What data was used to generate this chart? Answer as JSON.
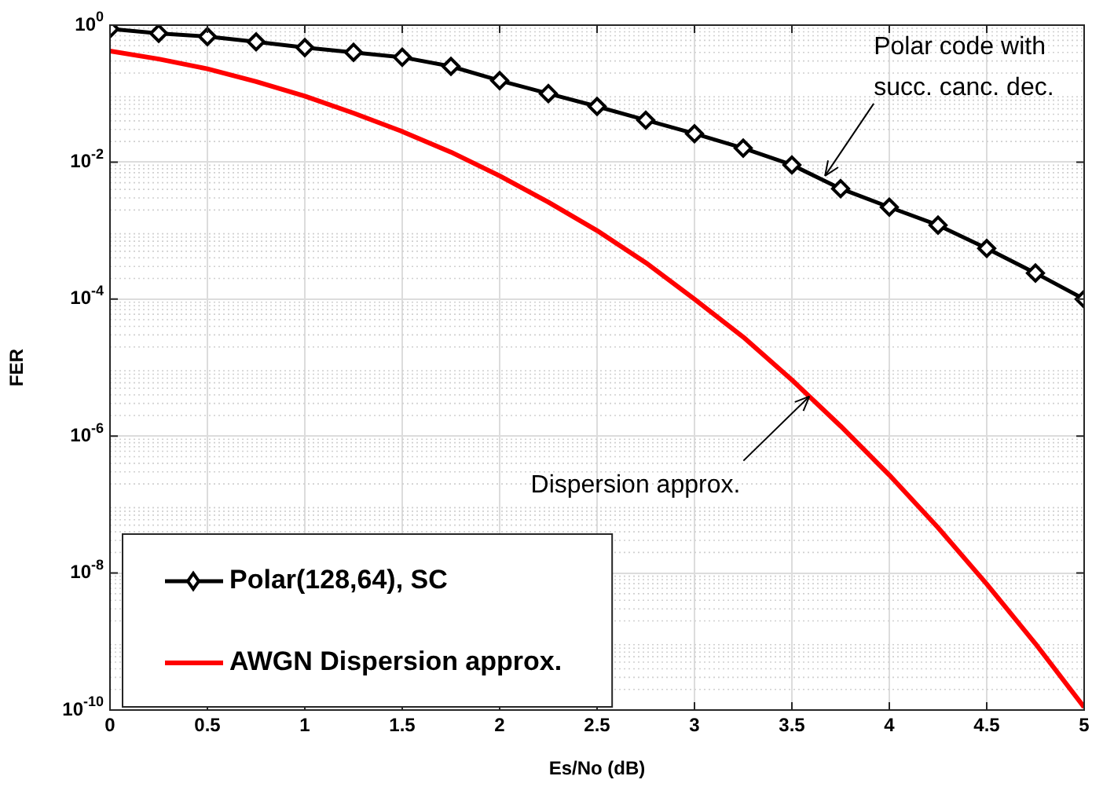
{
  "chart_data": {
    "type": "line",
    "xlabel": "Es/No (dB)",
    "ylabel": "FER",
    "x": [
      0,
      0.25,
      0.5,
      0.75,
      1,
      1.25,
      1.5,
      1.75,
      2,
      2.25,
      2.5,
      2.75,
      3,
      3.25,
      3.5,
      3.75,
      4,
      4.25,
      4.5,
      4.75,
      5
    ],
    "series": [
      {
        "name": "Polar(128,64), SC",
        "color": "#000000",
        "marker": "diamond",
        "values": [
          0.88,
          0.76,
          0.68,
          0.57,
          0.47,
          0.4,
          0.34,
          0.25,
          0.155,
          0.1,
          0.065,
          0.041,
          0.026,
          0.016,
          0.0091,
          0.0041,
          0.0022,
          0.0012,
          0.00055,
          0.00024,
          0.0001
        ]
      },
      {
        "name": "AWGN Dispersion approx.",
        "color": "#ff0000",
        "marker": "none",
        "values": [
          0.42,
          0.32,
          0.23,
          0.15,
          0.092,
          0.052,
          0.028,
          0.014,
          0.0063,
          0.0026,
          0.001,
          0.00034,
          0.0001,
          2.8e-05,
          6.6e-06,
          1.4e-06,
          2.7e-07,
          4.6e-08,
          6.9e-09,
          9.3e-10,
          1.1e-10
        ]
      }
    ],
    "xlim": [
      0,
      5
    ],
    "xticks": [
      0,
      0.5,
      1,
      1.5,
      2,
      2.5,
      3,
      3.5,
      4,
      4.5,
      5
    ],
    "ylim": [
      1e-10,
      1
    ],
    "yticks": [
      {
        "value": 1e-10,
        "label": "10$^{-10}$"
      },
      {
        "value": 1e-08,
        "label": "10$^{-8}$"
      },
      {
        "value": 1e-06,
        "label": "10$^{-6}$"
      },
      {
        "value": 0.0001,
        "label": "10$^{-4}$"
      },
      {
        "value": 0.01,
        "label": "10$^{-2}$"
      },
      {
        "value": 1,
        "label": "10$^{0}$"
      }
    ],
    "log": "y",
    "grid": true,
    "legend": "bottom left",
    "annotations": [
      {
        "text": "Polar code with\nsucc. canc. dec.",
        "x": 3.67,
        "y": 0.0063
      },
      {
        "text": "Dispersion approx.",
        "x": 3.59,
        "y": 3.8e-06
      }
    ]
  }
}
